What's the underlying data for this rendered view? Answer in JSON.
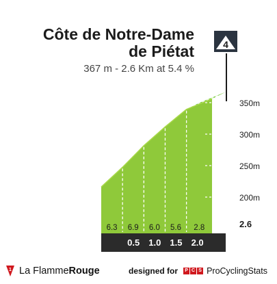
{
  "header": {
    "title_line1": "Côte de Notre-Dame",
    "title_line2": "de Piétat",
    "subtitle": "367 m - 2.6 Km at 5.4 %"
  },
  "category_marker": {
    "label": "4",
    "icon": "mountain-icon"
  },
  "chart_data": {
    "type": "area",
    "title": "",
    "distance_labels": [
      "0.5",
      "1.0",
      "1.5",
      "2.0"
    ],
    "segments": [
      {
        "start_km": 0.0,
        "end_km": 0.5,
        "gradient": 6.3,
        "color": "#dd1f2a"
      },
      {
        "start_km": 0.5,
        "end_km": 1.0,
        "gradient": 6.9,
        "color": "#dd1f2a"
      },
      {
        "start_km": 1.0,
        "end_km": 1.5,
        "gradient": 6.0,
        "color": "#1a6aa8"
      },
      {
        "start_km": 1.5,
        "end_km": 2.0,
        "gradient": 5.6,
        "color": "#1a6aa8"
      },
      {
        "start_km": 2.0,
        "end_km": 2.6,
        "gradient": 2.8,
        "color": "#6ec72d"
      }
    ],
    "gradient_labels": [
      "6.3",
      "6.9",
      "6.0",
      "5.6",
      "2.8"
    ],
    "end_distance_label": "2.6",
    "y_ticks": [
      "200m",
      "250m",
      "300m",
      "350m"
    ],
    "y_tick_values": [
      200,
      250,
      300,
      350
    ],
    "ylim": [
      150,
      370
    ],
    "xlim": [
      0,
      2.6
    ],
    "elevation_start_m": 227,
    "elevation_end_m": 367,
    "grid": true,
    "colors": {
      "fill": "#8fc93a",
      "fill_top": "#a9d94a",
      "base": "#2b2b2b",
      "side": "#a39a8c"
    }
  },
  "footer": {
    "brand_light": "La Flamme",
    "brand_bold": "Rouge",
    "designed_by": "designed for",
    "pcs_letters": [
      "P",
      "C",
      "S"
    ],
    "pcs_name": "ProCyclingStats"
  }
}
